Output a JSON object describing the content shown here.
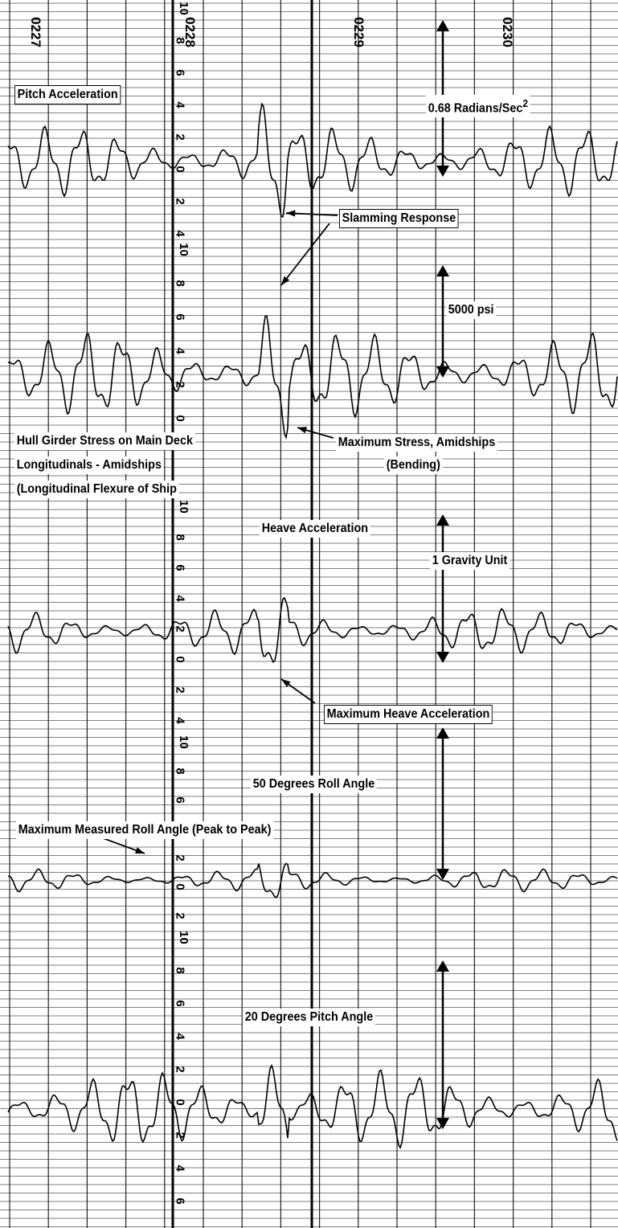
{
  "time_labels": [
    "0227",
    "0228",
    "0229",
    "0230"
  ],
  "channels": [
    {
      "scale": [
        "10",
        "8",
        "6",
        "4",
        "2",
        "0",
        "2",
        "4"
      ],
      "label": [
        "Pitch Acceleration"
      ],
      "range": "0.68 Radians/Sec",
      "range_sup": "2"
    },
    {
      "scale": [
        "10",
        "8",
        "6",
        "4",
        "2",
        "0"
      ],
      "label": [
        "Hull Girder Stress on Main Deck",
        "Longitudinals - Amidships",
        "(Longitudinal Flexure of Ship"
      ],
      "range": "5000 psi"
    },
    {
      "scale": [
        "10",
        "8",
        "6",
        "4",
        "2",
        "0",
        "2",
        "4"
      ],
      "label": [
        "Heave Acceleration"
      ],
      "range": "1 Gravity Unit"
    },
    {
      "scale": [
        "10",
        "8",
        "6",
        "4",
        "2",
        "0",
        "2"
      ],
      "label": [
        "Maximum Measured Roll Angle (Peak to Peak)"
      ],
      "range": "50 Degrees Roll Angle"
    },
    {
      "scale": [
        "10",
        "8",
        "6",
        "4",
        "2",
        "0",
        "2",
        "4",
        "6"
      ],
      "label": [],
      "range": "20 Degrees Pitch Angle"
    }
  ],
  "callouts": [
    "Slamming Response",
    "Maximum Stress, Amidships",
    "(Bending)",
    "Maximum Heave Acceleration"
  ]
}
